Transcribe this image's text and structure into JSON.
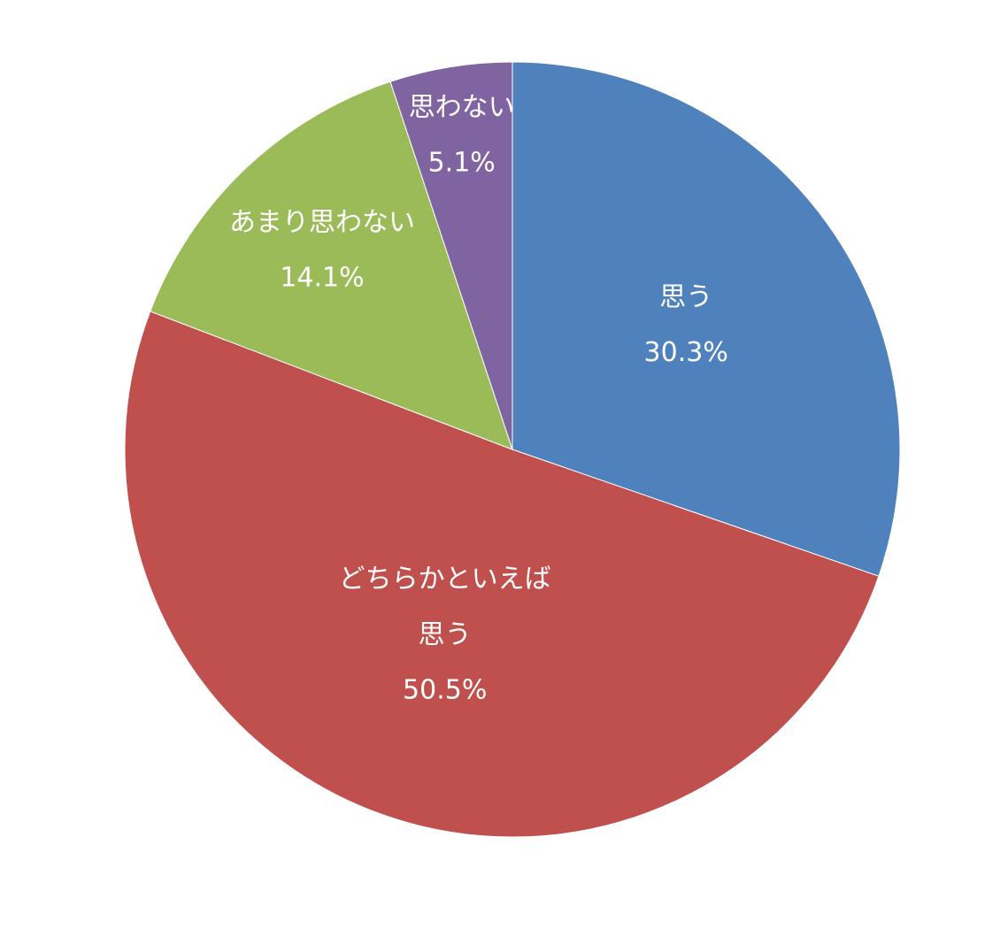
{
  "chart_data": {
    "type": "pie",
    "categories": [
      "思う",
      "どちらかといえば\n思う",
      "あまり思わない",
      "思わない"
    ],
    "values": [
      30.3,
      50.5,
      14.1,
      5.1
    ],
    "value_labels": [
      "30.3%",
      "50.5%",
      "14.1%",
      "5.1%"
    ],
    "colors": [
      "#4f81bd",
      "#c0504d",
      "#9bbb59",
      "#8064a2"
    ]
  }
}
